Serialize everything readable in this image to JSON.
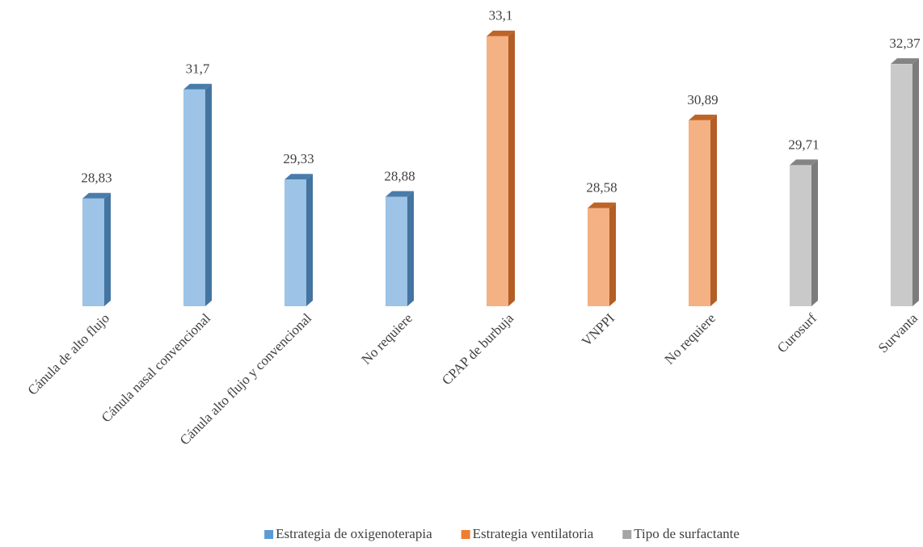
{
  "chart_data": {
    "type": "bar",
    "categories": [
      "Cánula de alto flujo",
      "Cánula nasal convencional",
      "Cánula alto flujo y convencional",
      "No requiere",
      "CPAP de burbuja",
      "VNPPI",
      "No requiere",
      "Curosurf",
      "Survanta"
    ],
    "series": [
      {
        "name": "Estrategia de oxigenoterapia",
        "color": "#5b9bd5",
        "values": [
          28.83,
          31.7,
          29.33,
          28.88,
          null,
          null,
          null,
          null,
          null
        ],
        "value_labels": [
          "28,83",
          "31,7",
          "29,33",
          "28,88",
          null,
          null,
          null,
          null,
          null
        ]
      },
      {
        "name": "Estrategia ventilatoria",
        "color": "#ed7d31",
        "values": [
          null,
          null,
          null,
          null,
          33.1,
          28.58,
          30.89,
          null,
          null
        ],
        "value_labels": [
          null,
          null,
          null,
          null,
          "33,1",
          "28,58",
          "30,89",
          null,
          null
        ]
      },
      {
        "name": "Tipo de surfactante",
        "color": "#a5a5a5",
        "values": [
          null,
          null,
          null,
          null,
          null,
          null,
          null,
          29.71,
          32.37
        ],
        "value_labels": [
          null,
          null,
          null,
          null,
          null,
          null,
          null,
          "29,71",
          "32,37"
        ]
      }
    ],
    "ylim": [
      26,
      33.5
    ],
    "legend": "bottom"
  }
}
